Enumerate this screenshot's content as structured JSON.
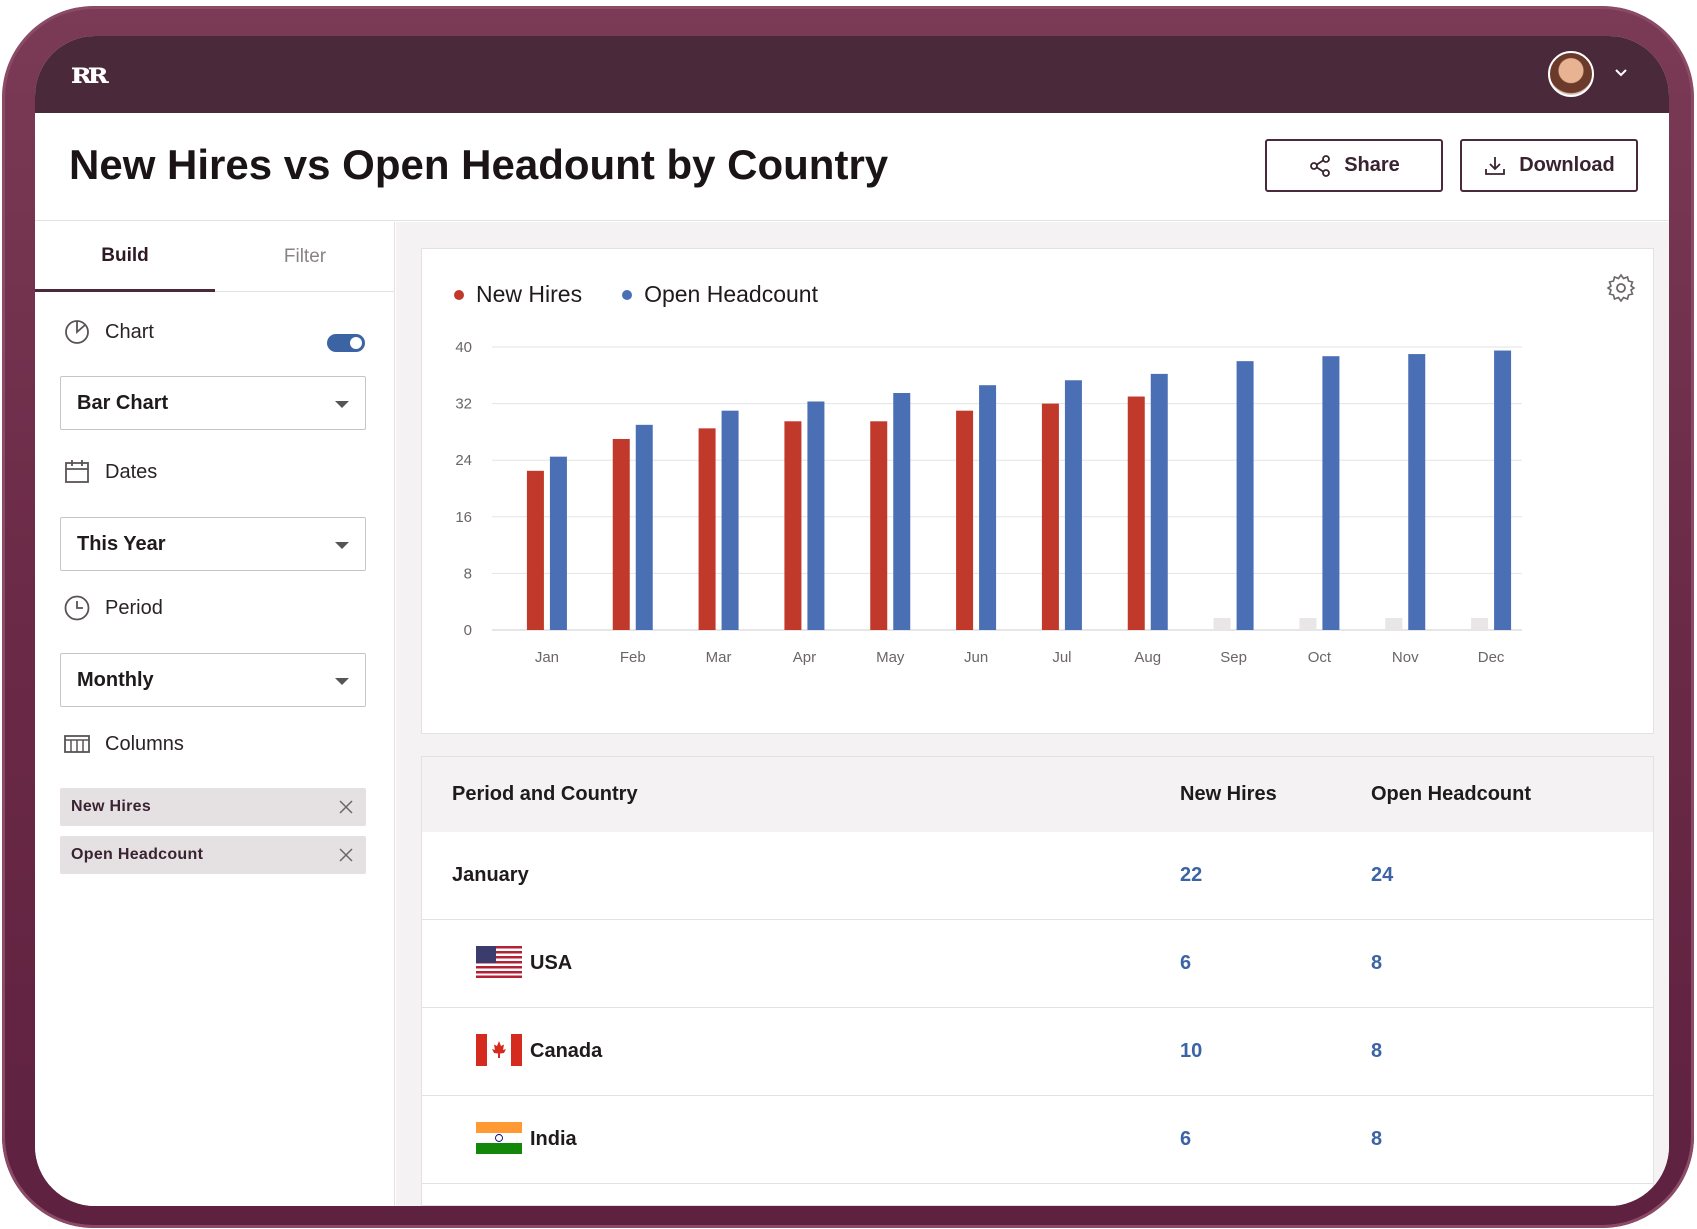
{
  "app": {
    "logo_text": "ʀʀ"
  },
  "header": {
    "title": "New Hires vs Open Headount by Country",
    "share_label": "Share",
    "download_label": "Download"
  },
  "sidebar": {
    "tabs": [
      {
        "label": "Build",
        "active": true
      },
      {
        "label": "Filter",
        "active": false
      }
    ],
    "chart": {
      "label": "Chart",
      "toggle_on": true,
      "select_value": "Bar Chart"
    },
    "dates": {
      "label": "Dates",
      "select_value": "This Year"
    },
    "period": {
      "label": "Period",
      "select_value": "Monthly"
    },
    "columns": {
      "label": "Columns",
      "chips": [
        "New Hires",
        "Open Headcount"
      ]
    }
  },
  "colors": {
    "new_hires": "#c0392b",
    "open_headcount": "#4a6fb5",
    "placeholder": "#e8e6e7",
    "brand": "#4a2a3a"
  },
  "chart_data": {
    "type": "bar",
    "categories": [
      "Jan",
      "Feb",
      "Mar",
      "Apr",
      "May",
      "Jun",
      "Jul",
      "Aug",
      "Sep",
      "Oct",
      "Nov",
      "Dec"
    ],
    "series": [
      {
        "name": "New Hires",
        "values": [
          22.5,
          27,
          28.5,
          29.5,
          29.5,
          31,
          32,
          33,
          null,
          null,
          null,
          null
        ]
      },
      {
        "name": "Open Headcount",
        "values": [
          24.5,
          29,
          31,
          32.3,
          33.5,
          34.6,
          35.3,
          36.2,
          38,
          38.7,
          39,
          39.5
        ]
      }
    ],
    "ylim": [
      0,
      40
    ],
    "yticks": [
      0,
      8,
      16,
      24,
      32,
      40
    ],
    "grid": true,
    "legend_position": "top-left"
  },
  "table": {
    "headers": [
      "Period and Country",
      "New Hires",
      "Open Headcount"
    ],
    "rows": [
      {
        "label": "January",
        "new_hires": "22",
        "open_headcount": "24",
        "flag": ""
      },
      {
        "label": "USA",
        "new_hires": "6",
        "open_headcount": "8",
        "flag": "usa-flag-icon"
      },
      {
        "label": "Canada",
        "new_hires": "10",
        "open_headcount": "8",
        "flag": "canada-flag-icon"
      },
      {
        "label": "India",
        "new_hires": "6",
        "open_headcount": "8",
        "flag": "india-flag-icon"
      }
    ]
  }
}
